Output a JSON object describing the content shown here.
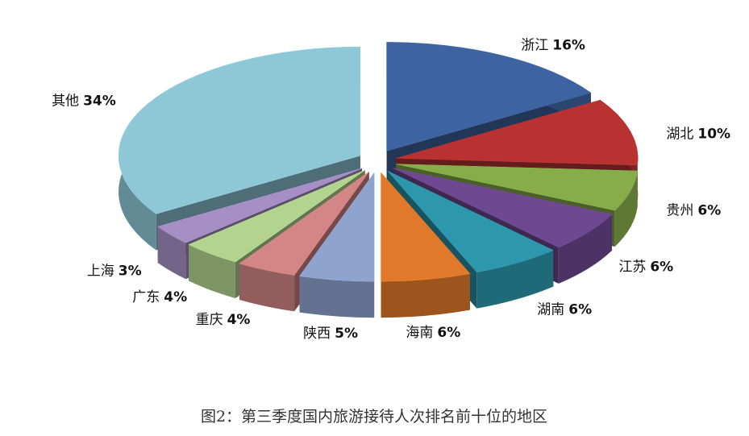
{
  "chart_data": {
    "type": "pie",
    "categories": [
      "浙江",
      "湖北",
      "贵州",
      "江苏",
      "湖南",
      "海南",
      "陕西",
      "重庆",
      "广东",
      "上海",
      "其他"
    ],
    "values": [
      16,
      10,
      6,
      6,
      6,
      6,
      5,
      4,
      4,
      3,
      34
    ],
    "value_labels": [
      "16%",
      "10%",
      "6%",
      "6%",
      "6%",
      "6%",
      "5%",
      "4%",
      "4%",
      "3%",
      "34%"
    ],
    "colors": [
      "#3d64a0",
      "#b83232",
      "#86ad4a",
      "#6e4891",
      "#2d97ad",
      "#e07a2a",
      "#8fa3cf",
      "#d48585",
      "#b3d48f",
      "#a58fc4",
      "#8ec7d6"
    ],
    "caption": "图2：第三季度国内旅游接待人次排名前十位的地区"
  }
}
